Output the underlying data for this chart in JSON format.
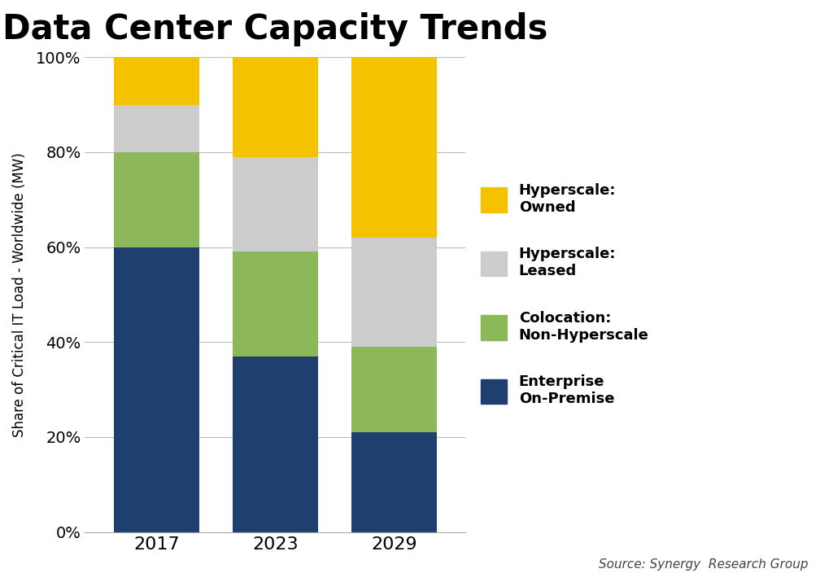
{
  "title": "Data Center Capacity Trends",
  "ylabel": "Share of Critical IT Load - Worldwide (MW)",
  "source": "Source: Synergy  Research Group",
  "years": [
    "2017",
    "2023",
    "2029"
  ],
  "values": {
    "Enterprise On-Premise": [
      60,
      37,
      21
    ],
    "Colocation Non-Hyperscale": [
      20,
      22,
      18
    ],
    "Hyperscale Leased": [
      10,
      20,
      23
    ],
    "Hyperscale Owned": [
      10,
      21,
      38
    ]
  },
  "colors": {
    "Enterprise On-Premise": "#1e3f6f",
    "Colocation Non-Hyperscale": "#8db85a",
    "Hyperscale Leased": "#cccccc",
    "Hyperscale Owned": "#f5c200"
  },
  "legend_labels": [
    "Hyperscale:\nOwned",
    "Hyperscale:\nLeased",
    "Colocation:\nNon-Hyperscale",
    "Enterprise\nOn-Premise"
  ],
  "legend_keys": [
    "Hyperscale Owned",
    "Hyperscale Leased",
    "Colocation Non-Hyperscale",
    "Enterprise On-Premise"
  ],
  "bar_width": 0.72,
  "ylim": [
    0,
    100
  ],
  "yticks": [
    0,
    20,
    40,
    60,
    80,
    100
  ],
  "ytick_labels": [
    "0%",
    "20%",
    "40%",
    "60%",
    "80%",
    "100%"
  ],
  "background_color": "#ffffff",
  "title_fontsize": 30,
  "axis_label_fontsize": 12,
  "tick_fontsize": 14,
  "legend_fontsize": 13,
  "source_fontsize": 11
}
